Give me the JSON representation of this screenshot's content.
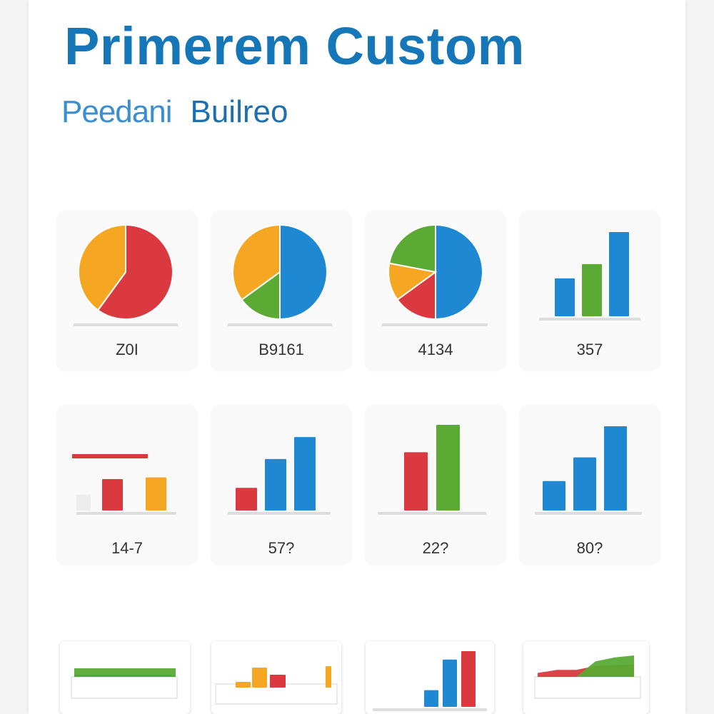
{
  "header": {
    "title": "Primerem Custom",
    "subtitle_a": "Peedani",
    "subtitle_b": "Builreo"
  },
  "colors": {
    "red": "#d9393f",
    "orange": "#f5a623",
    "green": "#5aaa34",
    "blue": "#1e88d2",
    "baseline": "#dddddd"
  },
  "chart_data": [
    {
      "id": "r1c1",
      "type": "pie",
      "label": "Z0I",
      "slices": [
        {
          "value": 60,
          "color": "red"
        },
        {
          "value": 40,
          "color": "orange"
        }
      ]
    },
    {
      "id": "r1c2",
      "type": "pie",
      "label": "B9161",
      "slices": [
        {
          "value": 50,
          "color": "blue"
        },
        {
          "value": 15,
          "color": "green"
        },
        {
          "value": 35,
          "color": "orange"
        }
      ]
    },
    {
      "id": "r1c3",
      "type": "pie",
      "label": "4134",
      "slices": [
        {
          "value": 50,
          "color": "blue"
        },
        {
          "value": 15,
          "color": "red"
        },
        {
          "value": 13,
          "color": "orange"
        },
        {
          "value": 22,
          "color": "green"
        }
      ]
    },
    {
      "id": "r1c4",
      "type": "bar",
      "label": "357",
      "values": [
        45,
        62,
        100
      ],
      "colors": [
        "blue",
        "green",
        "blue"
      ],
      "ylim": [
        0,
        100
      ]
    },
    {
      "id": "r2c1",
      "type": "bar",
      "label": "14-7",
      "values": [
        55,
        58
      ],
      "colors": [
        "red",
        "orange"
      ],
      "ylim": [
        0,
        100
      ],
      "reference_line": {
        "value": 95,
        "color": "red"
      }
    },
    {
      "id": "r2c2",
      "type": "bar",
      "label": "57?",
      "values": [
        30,
        68,
        97
      ],
      "colors": [
        "red",
        "blue",
        "blue"
      ],
      "ylim": [
        0,
        100
      ]
    },
    {
      "id": "r2c3",
      "type": "bar",
      "label": "22?",
      "values": [
        68,
        100
      ],
      "colors": [
        "red",
        "green"
      ],
      "ylim": [
        0,
        100
      ]
    },
    {
      "id": "r2c4",
      "type": "bar",
      "label": "80?",
      "values": [
        35,
        63,
        100
      ],
      "colors": [
        "blue",
        "blue",
        "blue"
      ],
      "ylim": [
        0,
        100
      ]
    },
    {
      "id": "r3c1",
      "type": "area",
      "label": "",
      "series": [
        {
          "values": [
            3,
            3,
            3,
            3
          ],
          "color": "blue"
        },
        {
          "values": [
            12,
            12,
            12,
            12
          ],
          "color": "green"
        }
      ]
    },
    {
      "id": "r3c2",
      "type": "bar",
      "label": "",
      "values": [
        8,
        28,
        18,
        0,
        0,
        30
      ],
      "colors": [
        "orange",
        "orange",
        "red",
        "orange",
        "orange",
        "orange"
      ],
      "ylim": [
        0,
        40
      ]
    },
    {
      "id": "r3c3",
      "type": "bar",
      "label": "",
      "values": [
        30,
        85,
        100
      ],
      "colors": [
        "blue",
        "blue",
        "red"
      ],
      "ylim": [
        0,
        100
      ]
    },
    {
      "id": "r3c4",
      "type": "area",
      "label": "",
      "series": [
        {
          "values": [
            10,
            18,
            18,
            28,
            30,
            32
          ],
          "color": "red"
        },
        {
          "values": [
            0,
            0,
            0,
            40,
            50,
            55
          ],
          "color": "green"
        }
      ]
    }
  ]
}
